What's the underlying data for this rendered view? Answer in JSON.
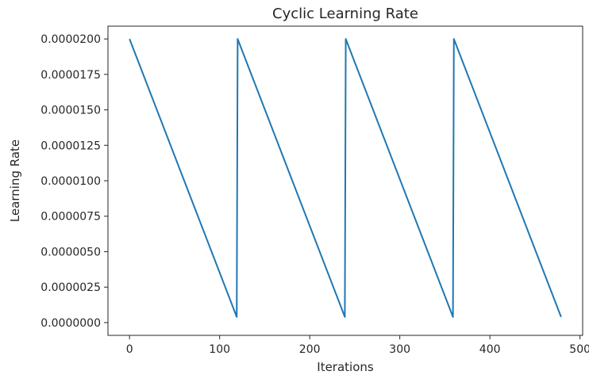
{
  "chart_data": {
    "type": "line",
    "title": "Cyclic Learning Rate",
    "xlabel": "Iterations",
    "ylabel": "Learning Rate",
    "xlim": [
      -23.95,
      502.95
    ],
    "ylim": [
      -9e-07,
      2.09e-05
    ],
    "x_ticks": [
      0,
      100,
      200,
      300,
      400,
      500
    ],
    "x_tick_labels": [
      "0",
      "100",
      "200",
      "300",
      "400",
      "500"
    ],
    "y_ticks": [
      0,
      2.5e-06,
      5e-06,
      7.5e-06,
      1e-05,
      1.25e-05,
      1.5e-05,
      1.75e-05,
      2e-05
    ],
    "y_tick_labels": [
      "0.0000000",
      "0.0000025",
      "0.0000050",
      "0.0000075",
      "0.0000100",
      "0.0000125",
      "0.0000150",
      "0.0000175",
      "0.0000200"
    ],
    "grid": false,
    "series": [
      {
        "color": "#1f77b4",
        "x": [
          0,
          119,
          120,
          239,
          240,
          359,
          360,
          479
        ],
        "y": [
          2e-05,
          4e-07,
          2e-05,
          4e-07,
          2e-05,
          4e-07,
          2e-05,
          4e-07
        ]
      }
    ]
  }
}
